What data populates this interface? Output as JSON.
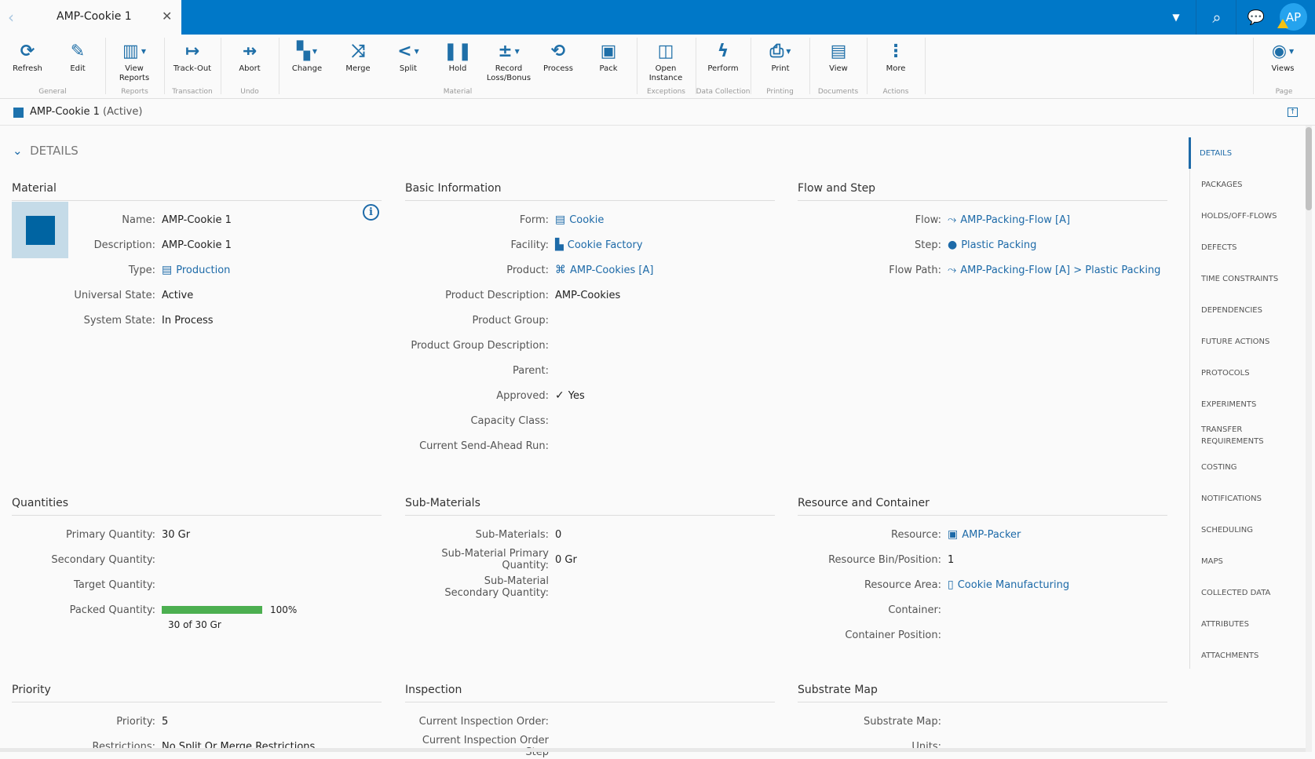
{
  "tab": {
    "title": "AMP-Cookie 1"
  },
  "header": {
    "avatar": "AP"
  },
  "toolbar": {
    "buttons": [
      {
        "label": "Refresh",
        "icon": "refresh-icon",
        "glyph": "⟳"
      },
      {
        "label": "Edit",
        "icon": "pencil-icon",
        "glyph": "✎"
      },
      {
        "label": "View Reports",
        "icon": "report-icon",
        "glyph": "▥"
      },
      {
        "label": "Track-Out",
        "icon": "track-out-icon",
        "glyph": "↦"
      },
      {
        "label": "Abort",
        "icon": "abort-icon",
        "glyph": "⇸"
      },
      {
        "label": "Change",
        "icon": "change-icon",
        "glyph": "▚"
      },
      {
        "label": "Merge",
        "icon": "merge-icon",
        "glyph": "⤨"
      },
      {
        "label": "Split",
        "icon": "split-icon",
        "glyph": "<"
      },
      {
        "label": "Hold",
        "icon": "pause-icon",
        "glyph": "❚❚"
      },
      {
        "label": "Record Loss/Bonus",
        "icon": "plus-minus-icon",
        "glyph": "±"
      },
      {
        "label": "Process",
        "icon": "process-icon",
        "glyph": "⟲"
      },
      {
        "label": "Pack",
        "icon": "box-icon",
        "glyph": "▣"
      },
      {
        "label": "Open Instance",
        "icon": "open-instance-icon",
        "glyph": "◫"
      },
      {
        "label": "Perform",
        "icon": "lightning-icon",
        "glyph": "ϟ"
      },
      {
        "label": "Print",
        "icon": "printer-icon",
        "glyph": "⎙"
      },
      {
        "label": "View",
        "icon": "document-icon",
        "glyph": "▤"
      },
      {
        "label": "More",
        "icon": "more-vertical-icon",
        "glyph": "⋮"
      },
      {
        "label": "Views",
        "icon": "eye-icon",
        "glyph": "◉"
      }
    ],
    "groups": [
      "General",
      "Reports",
      "Transaction",
      "Undo",
      "Material",
      "Exceptions",
      "Data Collection",
      "Printing",
      "Documents",
      "Actions",
      "Page"
    ]
  },
  "breadcrumb": {
    "name": "AMP-Cookie 1",
    "state": "(Active)"
  },
  "details_header": "DETAILS",
  "material": {
    "title": "Material",
    "rows": [
      {
        "label": "Name:",
        "value": "AMP-Cookie 1"
      },
      {
        "label": "Description:",
        "value": "AMP-Cookie 1"
      },
      {
        "label": "Type:",
        "value": "Production"
      },
      {
        "label": "Universal State:",
        "value": "Active"
      },
      {
        "label": "System State:",
        "value": "In Process"
      }
    ]
  },
  "basic": {
    "title": "Basic Information",
    "rows": [
      {
        "label": "Form:",
        "value": "Cookie"
      },
      {
        "label": "Facility:",
        "value": "Cookie Factory"
      },
      {
        "label": "Product:",
        "value": "AMP-Cookies [A]"
      },
      {
        "label": "Product Description:",
        "value": "AMP-Cookies"
      },
      {
        "label": "Product Group:",
        "value": ""
      },
      {
        "label": "Product Group Description:",
        "value": ""
      },
      {
        "label": "Parent:",
        "value": ""
      },
      {
        "label": "Approved:",
        "value": "Yes"
      },
      {
        "label": "Capacity Class:",
        "value": ""
      },
      {
        "label": "Current Send-Ahead Run:",
        "value": ""
      }
    ]
  },
  "flow": {
    "title": "Flow and Step",
    "rows": [
      {
        "label": "Flow:",
        "value": "AMP-Packing-Flow [A]"
      },
      {
        "label": "Step:",
        "value": "Plastic Packing"
      },
      {
        "label": "Flow Path:",
        "value": "AMP-Packing-Flow [A] > Plastic Packing"
      }
    ]
  },
  "quantities": {
    "title": "Quantities",
    "rows": [
      {
        "label": "Primary Quantity:",
        "value": "30  Gr"
      },
      {
        "label": "Secondary Quantity:",
        "value": ""
      },
      {
        "label": "Target Quantity:",
        "value": ""
      },
      {
        "label": "Packed Quantity:",
        "value": "100%"
      }
    ],
    "packed_percent": 100,
    "packed_text": "30 of 30 Gr"
  },
  "submaterials": {
    "title": "Sub-Materials",
    "rows": [
      {
        "label": "Sub-Materials:",
        "value": "0"
      },
      {
        "label": "Sub-Material Primary Quantity:",
        "value": "0 Gr"
      },
      {
        "label": "Sub-Material Secondary Quantity:",
        "value": ""
      }
    ]
  },
  "resource": {
    "title": "Resource and Container",
    "rows": [
      {
        "label": "Resource:",
        "value": "AMP-Packer"
      },
      {
        "label": "Resource Bin/Position:",
        "value": "1"
      },
      {
        "label": "Resource Area:",
        "value": "Cookie Manufacturing"
      },
      {
        "label": "Container:",
        "value": ""
      },
      {
        "label": "Container Position:",
        "value": ""
      }
    ]
  },
  "priority": {
    "title": "Priority",
    "rows": [
      {
        "label": "Priority:",
        "value": "5"
      },
      {
        "label": "Restrictions:",
        "value": "No Split Or Merge Restrictions"
      }
    ]
  },
  "inspection": {
    "title": "Inspection",
    "rows": [
      {
        "label": "Current Inspection Order:",
        "value": ""
      },
      {
        "label": "Current Inspection Order Step",
        "value": ""
      }
    ]
  },
  "substrate": {
    "title": "Substrate Map",
    "rows": [
      {
        "label": "Substrate Map:",
        "value": ""
      },
      {
        "label": "Units:",
        "value": ""
      }
    ]
  },
  "sidenav": [
    "DETAILS",
    "PACKAGES",
    "HOLDS/OFF-FLOWS",
    "DEFECTS",
    "TIME CONSTRAINTS",
    "DEPENDENCIES",
    "FUTURE ACTIONS",
    "PROTOCOLS",
    "EXPERIMENTS",
    "TRANSFER REQUIREMENTS",
    "COSTING",
    "NOTIFICATIONS",
    "SCHEDULING",
    "MAPS",
    "COLLECTED DATA",
    "ATTRIBUTES",
    "ATTACHMENTS"
  ],
  "colors": {
    "accent": "#0078c8",
    "link": "#1d6aa8",
    "progress": "#4caf50"
  }
}
